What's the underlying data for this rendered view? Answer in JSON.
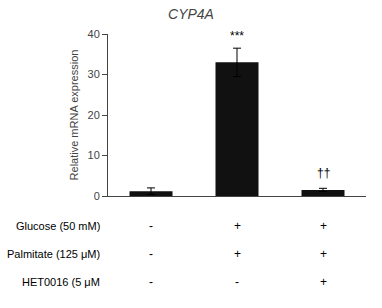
{
  "chart_data": {
    "type": "bar",
    "title": "CYP4A",
    "ylabel": "Relative mRNA expression",
    "categories": [
      null,
      null,
      null
    ],
    "values": [
      1.2,
      33.0,
      1.5
    ],
    "errors": [
      0.8,
      3.5,
      0.4
    ],
    "color": "#111111",
    "ylim": [
      0,
      40
    ],
    "yticks": [
      0,
      10,
      20,
      30,
      40
    ],
    "grid": false,
    "tick_labels": "y",
    "annotations": [
      {
        "text": "***",
        "category": 1,
        "y": 37.2
      },
      {
        "text": "††",
        "category": 2,
        "y": 3.5
      }
    ],
    "table": [
      {
        "label": "Glucose (50 mM)",
        "values": [
          "-",
          "+",
          "+"
        ]
      },
      {
        "label": "Palmitate (125 μM)",
        "values": [
          "-",
          "+",
          "+"
        ]
      },
      {
        "label": "HET0016 (5 μM",
        "values": [
          "-",
          "-",
          "+"
        ]
      }
    ]
  }
}
